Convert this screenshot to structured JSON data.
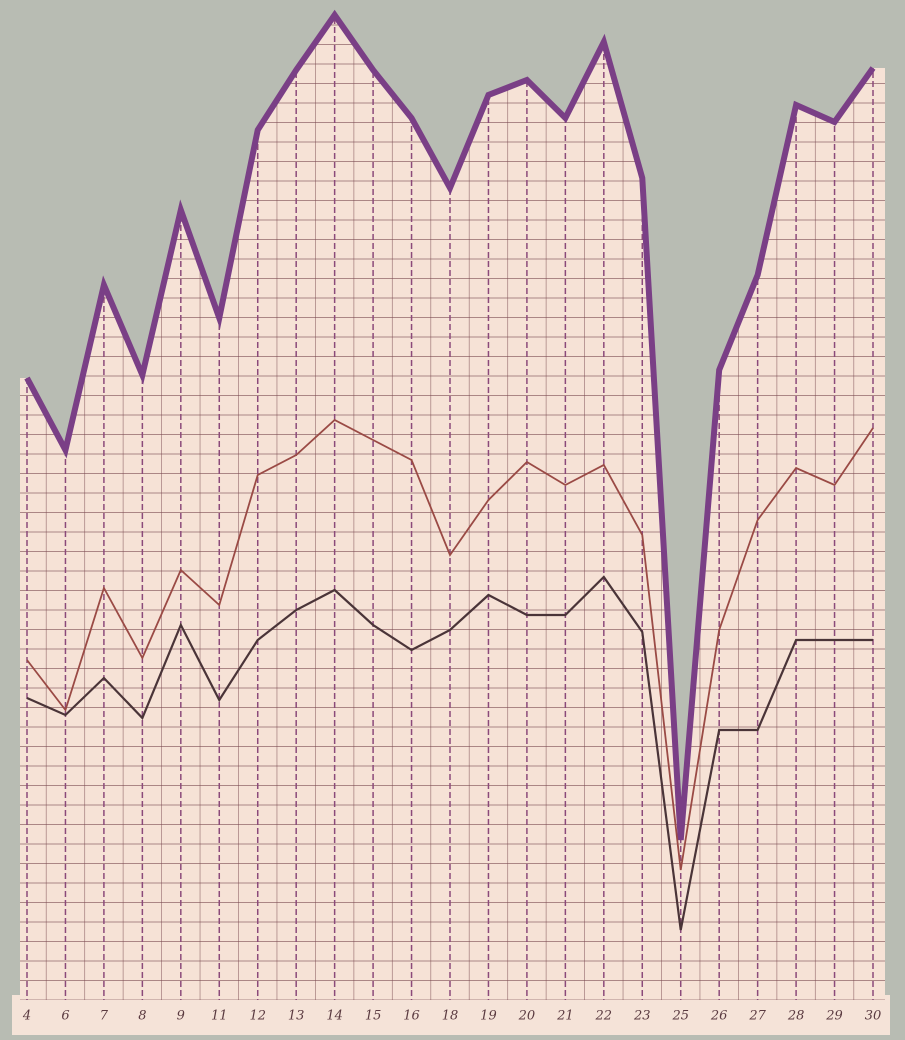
{
  "chart_data": {
    "type": "line",
    "categories": [
      "4",
      "6",
      "7",
      "8",
      "9",
      "11",
      "12",
      "13",
      "14",
      "15",
      "16",
      "18",
      "19",
      "20",
      "21",
      "22",
      "23",
      "25",
      "26",
      "27",
      "28",
      "29",
      "30"
    ],
    "series": [
      {
        "color": "#7a3f86",
        "values": [
          62.2,
          55,
          71.5,
          62.5,
          79,
          68.2,
          87,
          93,
          98.5,
          93,
          88.2,
          81.2,
          90.5,
          92,
          88.2,
          95.8,
          82.2,
          16,
          63,
          72.5,
          89.5,
          87.8,
          93.2
        ]
      },
      {
        "color": "#9a4a45",
        "values": [
          34,
          29,
          41.2,
          34.2,
          43,
          39.5,
          52.5,
          54.5,
          58,
          56,
          54,
          44.5,
          50,
          53.8,
          51.5,
          53.5,
          46.5,
          13,
          37,
          48,
          53.2,
          51.5,
          57.2
        ]
      },
      {
        "color": "#4a3438",
        "values": [
          30.2,
          28.5,
          32.2,
          28.2,
          37.5,
          30,
          36,
          39,
          41,
          37.5,
          35,
          37,
          40.5,
          38.5,
          38.5,
          42.3,
          36.8,
          7,
          27,
          27,
          36,
          36,
          36
        ]
      }
    ],
    "ylim": [
      0,
      100
    ]
  }
}
